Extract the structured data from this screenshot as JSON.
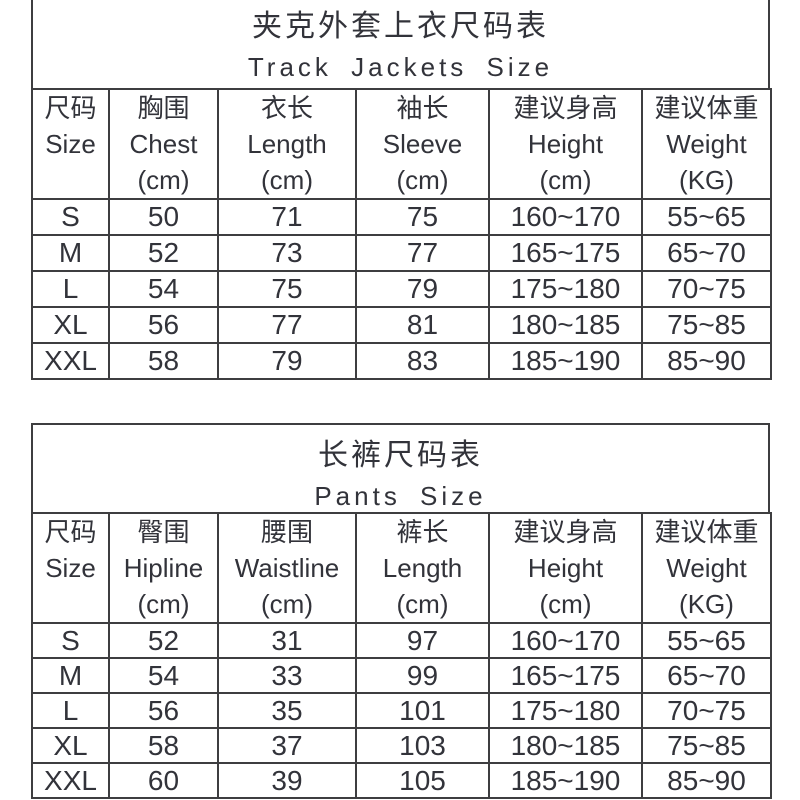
{
  "page": {
    "background_color": "#ffffff",
    "text_color": "#32333a",
    "border_color": "#3e3e40"
  },
  "jackets_table": {
    "title_zh": "夹克外套上衣尺码表",
    "title_en": "Track Jackets Size",
    "headers": [
      {
        "zh": "尺码",
        "en": "Size",
        "unit": ""
      },
      {
        "zh": "胸围",
        "en": "Chest",
        "unit": "(cm)"
      },
      {
        "zh": "衣长",
        "en": "Length",
        "unit": "(cm)"
      },
      {
        "zh": "袖长",
        "en": "Sleeve",
        "unit": "(cm)"
      },
      {
        "zh": "建议身高",
        "en": "Height",
        "unit": "(cm)"
      },
      {
        "zh": "建议体重",
        "en": "Weight",
        "unit": "(KG)"
      }
    ],
    "rows": [
      [
        "S",
        "50",
        "71",
        "75",
        "160~170",
        "55~65"
      ],
      [
        "M",
        "52",
        "73",
        "77",
        "165~175",
        "65~70"
      ],
      [
        "L",
        "54",
        "75",
        "79",
        "175~180",
        "70~75"
      ],
      [
        "XL",
        "56",
        "77",
        "81",
        "180~185",
        "75~85"
      ],
      [
        "XXL",
        "58",
        "79",
        "83",
        "185~190",
        "85~90"
      ]
    ]
  },
  "pants_table": {
    "title_zh": "长裤尺码表",
    "title_en": "Pants Size",
    "headers": [
      {
        "zh": "尺码",
        "en": "Size",
        "unit": ""
      },
      {
        "zh": "臀围",
        "en": "Hipline",
        "unit": "(cm)"
      },
      {
        "zh": "腰围",
        "en": "Waistline",
        "unit": "(cm)"
      },
      {
        "zh": "裤长",
        "en": "Length",
        "unit": "(cm)"
      },
      {
        "zh": "建议身高",
        "en": "Height",
        "unit": "(cm)"
      },
      {
        "zh": "建议体重",
        "en": "Weight",
        "unit": "(KG)"
      }
    ],
    "rows": [
      [
        "S",
        "52",
        "31",
        "97",
        "160~170",
        "55~65"
      ],
      [
        "M",
        "54",
        "33",
        "99",
        "165~175",
        "65~70"
      ],
      [
        "L",
        "56",
        "35",
        "101",
        "175~180",
        "70~75"
      ],
      [
        "XL",
        "58",
        "37",
        "103",
        "180~185",
        "75~85"
      ],
      [
        "XXL",
        "60",
        "39",
        "105",
        "185~190",
        "85~90"
      ]
    ]
  }
}
